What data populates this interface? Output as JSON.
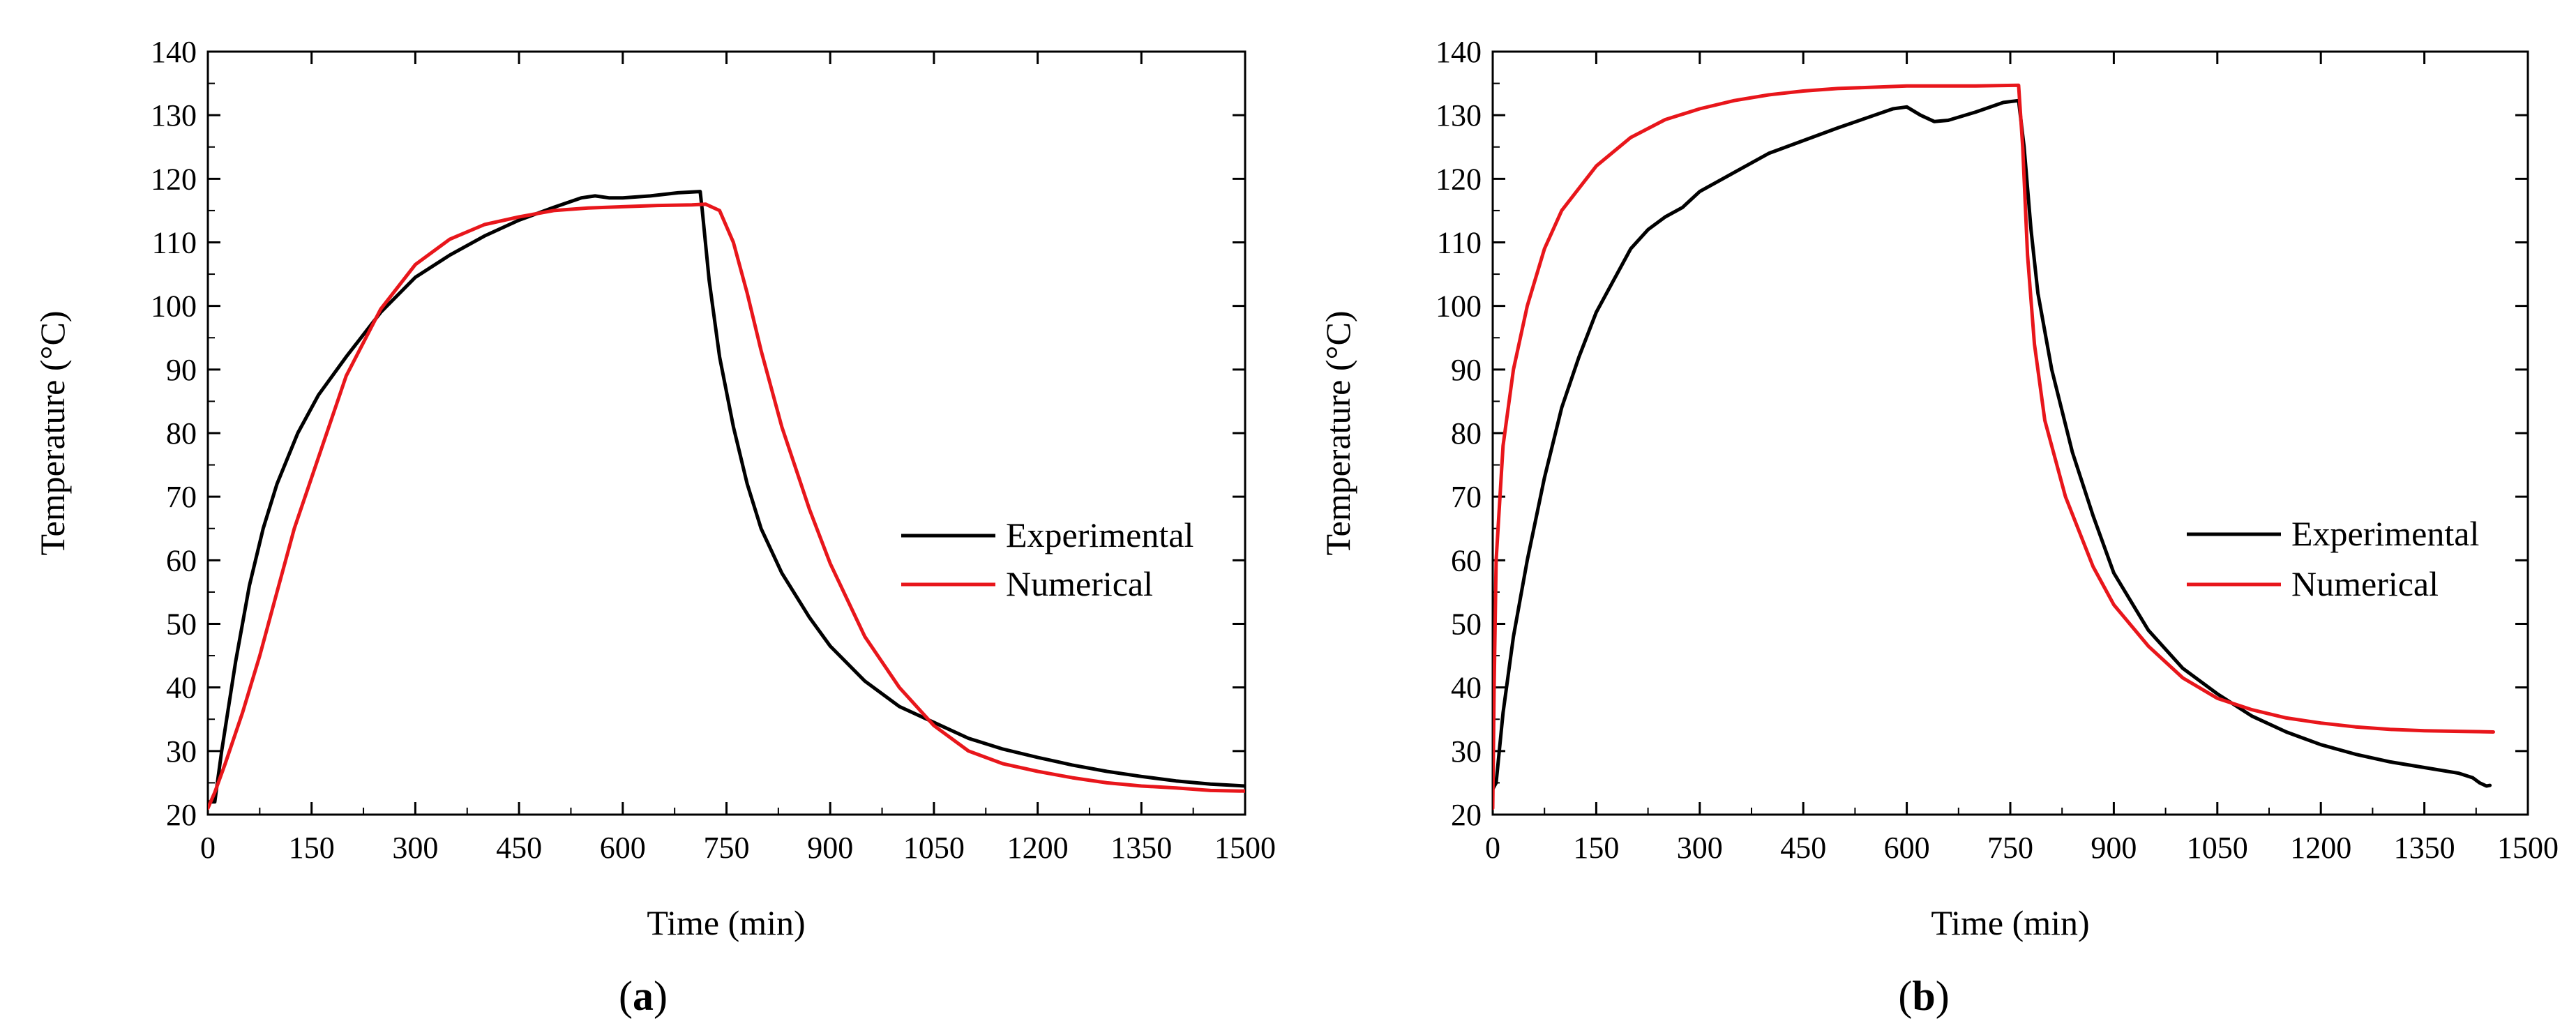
{
  "chart_data": [
    {
      "type": "line",
      "panel_label": "a",
      "xlabel": "Time (min)",
      "ylabel": "Temperature (°C)",
      "xlim": [
        0,
        1500
      ],
      "ylim": [
        20,
        140
      ],
      "xticks": [
        0,
        150,
        300,
        450,
        600,
        750,
        900,
        1050,
        1200,
        1350,
        1500
      ],
      "yticks": [
        20,
        30,
        40,
        50,
        60,
        70,
        80,
        90,
        100,
        110,
        120,
        130,
        140
      ],
      "legend_position": "right",
      "series": [
        {
          "name": "Experimental",
          "color": "#000000",
          "points": [
            [
              0,
              22
            ],
            [
              10,
              22
            ],
            [
              20,
              30
            ],
            [
              40,
              44
            ],
            [
              60,
              56
            ],
            [
              80,
              65
            ],
            [
              100,
              72
            ],
            [
              130,
              80
            ],
            [
              160,
              86
            ],
            [
              200,
              92
            ],
            [
              250,
              99
            ],
            [
              300,
              104.5
            ],
            [
              350,
              108
            ],
            [
              400,
              111
            ],
            [
              450,
              113.5
            ],
            [
              500,
              115.5
            ],
            [
              540,
              117
            ],
            [
              560,
              117.3
            ],
            [
              580,
              117
            ],
            [
              600,
              117
            ],
            [
              640,
              117.3
            ],
            [
              680,
              117.8
            ],
            [
              712,
              118
            ],
            [
              715,
              115
            ],
            [
              725,
              104
            ],
            [
              740,
              92
            ],
            [
              760,
              81
            ],
            [
              780,
              72
            ],
            [
              800,
              65
            ],
            [
              830,
              58
            ],
            [
              870,
              51
            ],
            [
              900,
              46.5
            ],
            [
              950,
              41
            ],
            [
              1000,
              37
            ],
            [
              1050,
              34.5
            ],
            [
              1100,
              32
            ],
            [
              1150,
              30.3
            ],
            [
              1200,
              29
            ],
            [
              1250,
              27.8
            ],
            [
              1300,
              26.8
            ],
            [
              1350,
              26
            ],
            [
              1400,
              25.3
            ],
            [
              1450,
              24.8
            ],
            [
              1500,
              24.5
            ]
          ]
        },
        {
          "name": "Numerical",
          "color": "#e8161b",
          "points": [
            [
              0,
              21
            ],
            [
              10,
              23.5
            ],
            [
              25,
              28
            ],
            [
              50,
              36
            ],
            [
              75,
              45
            ],
            [
              100,
              55
            ],
            [
              125,
              65
            ],
            [
              150,
              73
            ],
            [
              175,
              81
            ],
            [
              200,
              89
            ],
            [
              250,
              99.5
            ],
            [
              300,
              106.5
            ],
            [
              350,
              110.5
            ],
            [
              400,
              112.8
            ],
            [
              450,
              114
            ],
            [
              500,
              115
            ],
            [
              550,
              115.4
            ],
            [
              600,
              115.6
            ],
            [
              650,
              115.8
            ],
            [
              700,
              115.9
            ],
            [
              720,
              116
            ],
            [
              740,
              115
            ],
            [
              760,
              110
            ],
            [
              780,
              102
            ],
            [
              800,
              93
            ],
            [
              830,
              81
            ],
            [
              870,
              68
            ],
            [
              900,
              59.5
            ],
            [
              950,
              48
            ],
            [
              1000,
              40
            ],
            [
              1050,
              34
            ],
            [
              1100,
              30
            ],
            [
              1150,
              28
            ],
            [
              1200,
              26.8
            ],
            [
              1250,
              25.8
            ],
            [
              1300,
              25
            ],
            [
              1350,
              24.5
            ],
            [
              1400,
              24.2
            ],
            [
              1450,
              23.8
            ],
            [
              1500,
              23.7
            ]
          ]
        }
      ]
    },
    {
      "type": "line",
      "panel_label": "b",
      "xlabel": "Time (min)",
      "ylabel": "Temperature (°C)",
      "xlim": [
        0,
        1500
      ],
      "ylim": [
        20,
        140
      ],
      "xticks": [
        0,
        150,
        300,
        450,
        600,
        750,
        900,
        1050,
        1200,
        1350,
        1500
      ],
      "yticks": [
        20,
        30,
        40,
        50,
        60,
        70,
        80,
        90,
        100,
        110,
        120,
        130,
        140
      ],
      "legend_position": "right",
      "series": [
        {
          "name": "Experimental",
          "color": "#000000",
          "points": [
            [
              0,
              24
            ],
            [
              5,
              25
            ],
            [
              15,
              36
            ],
            [
              30,
              48
            ],
            [
              50,
              60
            ],
            [
              75,
              73
            ],
            [
              100,
              84
            ],
            [
              125,
              92
            ],
            [
              150,
              99
            ],
            [
              175,
              104
            ],
            [
              200,
              109
            ],
            [
              225,
              112
            ],
            [
              250,
              114
            ],
            [
              275,
              115.5
            ],
            [
              300,
              118
            ],
            [
              350,
              121
            ],
            [
              400,
              124
            ],
            [
              450,
              126
            ],
            [
              500,
              128
            ],
            [
              540,
              129.5
            ],
            [
              580,
              131
            ],
            [
              600,
              131.3
            ],
            [
              620,
              130
            ],
            [
              640,
              129
            ],
            [
              660,
              129.2
            ],
            [
              700,
              130.5
            ],
            [
              740,
              132
            ],
            [
              762,
              132.3
            ],
            [
              770,
              125
            ],
            [
              780,
              112
            ],
            [
              790,
              102
            ],
            [
              810,
              90
            ],
            [
              840,
              77
            ],
            [
              870,
              67
            ],
            [
              900,
              58
            ],
            [
              950,
              49
            ],
            [
              1000,
              43
            ],
            [
              1050,
              39
            ],
            [
              1100,
              35.5
            ],
            [
              1150,
              33
            ],
            [
              1200,
              31
            ],
            [
              1250,
              29.5
            ],
            [
              1300,
              28.3
            ],
            [
              1350,
              27.4
            ],
            [
              1400,
              26.5
            ],
            [
              1420,
              25.8
            ],
            [
              1430,
              25
            ],
            [
              1440,
              24.5
            ],
            [
              1445,
              24.6
            ]
          ]
        },
        {
          "name": "Numerical",
          "color": "#e8161b",
          "points": [
            [
              0,
              21
            ],
            [
              2,
              40
            ],
            [
              5,
              60
            ],
            [
              15,
              78
            ],
            [
              30,
              90
            ],
            [
              50,
              100
            ],
            [
              75,
              109
            ],
            [
              100,
              115
            ],
            [
              150,
              122
            ],
            [
              200,
              126.5
            ],
            [
              250,
              129.3
            ],
            [
              300,
              131
            ],
            [
              350,
              132.3
            ],
            [
              400,
              133.2
            ],
            [
              450,
              133.8
            ],
            [
              500,
              134.2
            ],
            [
              550,
              134.4
            ],
            [
              600,
              134.6
            ],
            [
              650,
              134.6
            ],
            [
              700,
              134.6
            ],
            [
              762,
              134.7
            ],
            [
              768,
              125
            ],
            [
              775,
              108
            ],
            [
              785,
              94
            ],
            [
              800,
              82
            ],
            [
              830,
              70
            ],
            [
              870,
              59
            ],
            [
              900,
              53
            ],
            [
              950,
              46.5
            ],
            [
              1000,
              41.5
            ],
            [
              1050,
              38.3
            ],
            [
              1100,
              36.5
            ],
            [
              1150,
              35.2
            ],
            [
              1200,
              34.4
            ],
            [
              1250,
              33.8
            ],
            [
              1300,
              33.4
            ],
            [
              1350,
              33.2
            ],
            [
              1400,
              33.1
            ],
            [
              1450,
              33
            ]
          ]
        }
      ]
    }
  ]
}
